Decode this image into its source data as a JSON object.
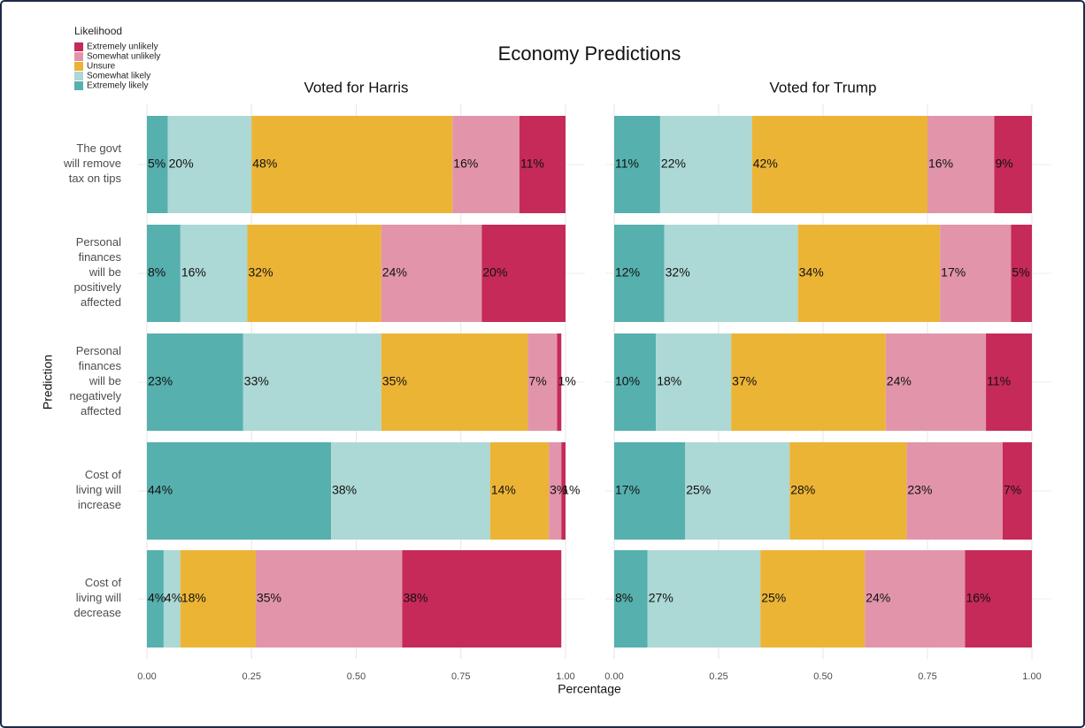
{
  "title": "Economy Predictions",
  "legend_title": "Likelihood",
  "y_label": "Prediction",
  "x_label": "Percentage",
  "chart_data": [
    {
      "type": "bar",
      "orientation": "horizontal",
      "stacked": true,
      "title": "Voted for Harris",
      "categories": [
        "The govt will remove tax on tips",
        "Personal finances will be positively affected",
        "Personal finances will be negatively affected",
        "Cost of living will increase",
        "Cost of living will decrease"
      ],
      "series": [
        {
          "name": "Extremely likely",
          "color": "#56b0ae",
          "values": [
            0.05,
            0.08,
            0.23,
            0.44,
            0.04
          ],
          "value_labels": [
            "5%",
            "8%",
            "23%",
            "44%",
            "4%"
          ]
        },
        {
          "name": "Somewhat likely",
          "color": "#acd8d5",
          "values": [
            0.2,
            0.16,
            0.33,
            0.38,
            0.04
          ],
          "value_labels": [
            "20%",
            "16%",
            "33%",
            "38%",
            "4%"
          ]
        },
        {
          "name": "Unsure",
          "color": "#ecb435",
          "values": [
            0.48,
            0.32,
            0.35,
            0.14,
            0.18
          ],
          "value_labels": [
            "48%",
            "32%",
            "35%",
            "14%",
            "18%"
          ]
        },
        {
          "name": "Somewhat unlikely",
          "color": "#e295aa",
          "values": [
            0.16,
            0.24,
            0.07,
            0.03,
            0.35
          ],
          "value_labels": [
            "16%",
            "24%",
            "7%",
            "3%",
            "35%"
          ]
        },
        {
          "name": "Extremely unlikely",
          "color": "#c52a58",
          "values": [
            0.11,
            0.2,
            0.01,
            0.01,
            0.38
          ],
          "value_labels": [
            "11%",
            "20%",
            "1%",
            "1%",
            "38%"
          ]
        }
      ],
      "xlim": [
        0,
        1
      ],
      "xticks": [
        {
          "value": 0,
          "label": "0.00"
        },
        {
          "value": 0.25,
          "label": "0.25"
        },
        {
          "value": 0.5,
          "label": "0.50"
        },
        {
          "value": 0.75,
          "label": "0.75"
        },
        {
          "value": 1,
          "label": "1.00"
        }
      ]
    },
    {
      "type": "bar",
      "orientation": "horizontal",
      "stacked": true,
      "title": "Voted for Trump",
      "series": [
        {
          "values": [
            0.11,
            0.12,
            0.1,
            0.17,
            0.08
          ],
          "value_labels": [
            "11%",
            "12%",
            "10%",
            "17%",
            "8%"
          ]
        },
        {
          "values": [
            0.22,
            0.32,
            0.18,
            0.25,
            0.27
          ],
          "value_labels": [
            "22%",
            "32%",
            "18%",
            "25%",
            "27%"
          ]
        },
        {
          "values": [
            0.42,
            0.34,
            0.37,
            0.28,
            0.25
          ],
          "value_labels": [
            "42%",
            "34%",
            "37%",
            "28%",
            "25%"
          ]
        },
        {
          "values": [
            0.16,
            0.17,
            0.24,
            0.23,
            0.24
          ],
          "value_labels": [
            "16%",
            "17%",
            "24%",
            "23%",
            "24%"
          ]
        },
        {
          "values": [
            0.09,
            0.05,
            0.11,
            0.07,
            0.16
          ],
          "value_labels": [
            "9%",
            "5%",
            "11%",
            "7%",
            "16%"
          ]
        }
      ],
      "xlim": [
        0,
        1
      ],
      "xticks": [
        {
          "value": 0,
          "label": "0.00"
        },
        {
          "value": 0.25,
          "label": "0.25"
        },
        {
          "value": 0.5,
          "label": "0.50"
        },
        {
          "value": 0.75,
          "label": "0.75"
        },
        {
          "value": 1,
          "label": "1.00"
        }
      ]
    }
  ]
}
